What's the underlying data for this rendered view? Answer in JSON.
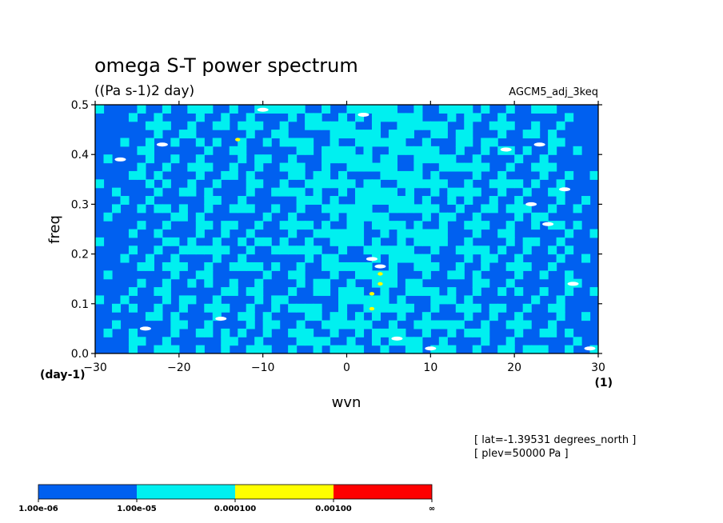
{
  "header": {
    "title": "omega S-T power spectrum",
    "units": "((Pa s-1)2 day)",
    "dataset": "AGCM5_adj_3keq"
  },
  "annotations": {
    "lat": "[ lat=-1.39531 degrees_north ]",
    "plev": "[ plev=50000 Pa ]"
  },
  "chart_data": {
    "type": "heatmap",
    "title": "omega S-T power spectrum",
    "units": "((Pa s-1)2 day)",
    "xlabel": "wvn",
    "ylabel": "freq",
    "x_unit": "(1)",
    "y_unit": "(day-1)",
    "xlim": [
      -30,
      30
    ],
    "ylim": [
      0.0,
      0.5
    ],
    "x_ticks": [
      -30,
      -20,
      -10,
      0,
      10,
      20,
      30
    ],
    "x_tick_labels": [
      "−30",
      "−20",
      "−10",
      "0",
      "10",
      "20",
      "30"
    ],
    "y_ticks": [
      0.0,
      0.1,
      0.2,
      0.3,
      0.4,
      0.5
    ],
    "y_tick_labels": [
      "0.0",
      "0.1",
      "0.2",
      "0.3",
      "0.4",
      "0.5"
    ],
    "x_step": 2,
    "y_step": 0.0166667,
    "colorbar": {
      "levels": [
        "1.00e-06",
        "1.00e-05",
        "0.000100",
        "0.00100",
        "∞"
      ],
      "colors": [
        "#0060f0",
        "#00f0f0",
        "#ffff00",
        "#ff0000"
      ]
    },
    "background_color": "#ffffff",
    "hotspots": [
      {
        "x": 4,
        "y": 0.16,
        "color": "#ffff00"
      },
      {
        "x": 4,
        "y": 0.14,
        "color": "#ffff00"
      },
      {
        "x": 3,
        "y": 0.12,
        "color": "#ffff00"
      },
      {
        "x": 3,
        "y": 0.09,
        "color": "#ffff00"
      },
      {
        "x": -13,
        "y": 0.43,
        "color": "#ffff00"
      }
    ],
    "gaps": [
      {
        "x": 4,
        "y": 0.175
      },
      {
        "x": -22,
        "y": 0.42
      },
      {
        "x": -27,
        "y": 0.39
      },
      {
        "x": 23,
        "y": 0.42
      },
      {
        "x": 26,
        "y": 0.33
      },
      {
        "x": 22,
        "y": 0.3
      },
      {
        "x": 24,
        "y": 0.26
      },
      {
        "x": 2,
        "y": 0.48
      },
      {
        "x": -24,
        "y": 0.05
      },
      {
        "x": 10,
        "y": 0.01
      },
      {
        "x": 29,
        "y": 0.01
      },
      {
        "x": -10,
        "y": 0.49
      },
      {
        "x": 19,
        "y": 0.41
      },
      {
        "x": 3,
        "y": 0.19
      },
      {
        "x": -15,
        "y": 0.07
      },
      {
        "x": 6,
        "y": 0.03
      },
      {
        "x": 27,
        "y": 0.14
      }
    ]
  }
}
